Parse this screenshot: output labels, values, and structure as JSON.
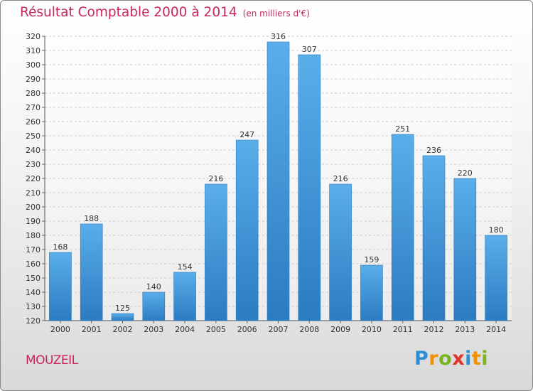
{
  "chart_data": {
    "type": "bar",
    "title": "Résultat Comptable 2000 à 2014",
    "subtitle": "(en milliers d'€)",
    "categories": [
      "2000",
      "2001",
      "2002",
      "2003",
      "2004",
      "2005",
      "2006",
      "2007",
      "2008",
      "2009",
      "2010",
      "2011",
      "2012",
      "2013",
      "2014"
    ],
    "values": [
      168,
      188,
      125,
      140,
      154,
      216,
      247,
      316,
      307,
      216,
      159,
      251,
      236,
      220,
      180
    ],
    "ylim": [
      120,
      320
    ],
    "yticks": [
      120,
      130,
      140,
      150,
      160,
      170,
      180,
      190,
      200,
      210,
      220,
      230,
      240,
      250,
      260,
      270,
      280,
      290,
      300,
      310,
      320
    ],
    "grid": true,
    "bar_color": "#3f93d6",
    "xlabel": "",
    "ylabel": ""
  },
  "location": "MOUZEIL",
  "brand": {
    "letters": [
      "P",
      "r",
      "o",
      "x",
      "i",
      "t",
      "i"
    ],
    "colors": [
      "#2e8fd0",
      "#f29200",
      "#79b51c",
      "#e2322b",
      "#2e8fd0",
      "#f29200",
      "#79b51c"
    ]
  },
  "colors": {
    "title": "#c8275a",
    "grid": "#cccccc"
  }
}
